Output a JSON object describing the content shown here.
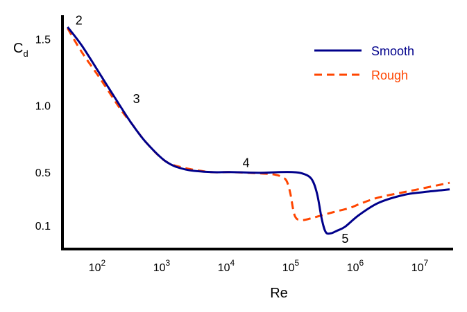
{
  "chart_data": {
    "type": "line",
    "title": "",
    "xlabel": "Re",
    "ylabel": "C",
    "ylabel_sub": "d",
    "xscale": "log",
    "xlim": [
      25,
      25000000
    ],
    "ylim": [
      0.0,
      1.72
    ],
    "x_ticks": [
      {
        "base": "10",
        "exp": "2",
        "value": 100
      },
      {
        "base": "10",
        "exp": "3",
        "value": 1000
      },
      {
        "base": "10",
        "exp": "4",
        "value": 10000
      },
      {
        "base": "10",
        "exp": "5",
        "value": 100000
      },
      {
        "base": "10",
        "exp": "6",
        "value": 1000000
      },
      {
        "base": "10",
        "exp": "7",
        "value": 10000000
      }
    ],
    "y_ticks": [
      {
        "label": "0.1",
        "value": 0.1
      },
      {
        "label": "0.5",
        "value": 0.5
      },
      {
        "label": "1.0",
        "value": 1.0
      },
      {
        "label": "1.5",
        "value": 1.5
      }
    ],
    "legend_position": "top-right",
    "series": [
      {
        "name": "Smooth",
        "color": "#00008b",
        "dash": "solid",
        "x": [
          30,
          50,
          100,
          200,
          300,
          500,
          1000,
          2000,
          5000,
          10000,
          30000,
          60000,
          90000,
          130000,
          180000,
          220000,
          260000,
          300000,
          360000,
          450000,
          600000,
          1000000,
          2000000,
          5000000,
          10000000,
          25000000
        ],
        "y": [
          1.59,
          1.45,
          1.22,
          0.99,
          0.86,
          0.72,
          0.58,
          0.52,
          0.5,
          0.5,
          0.495,
          0.5,
          0.5,
          0.49,
          0.45,
          0.34,
          0.15,
          0.05,
          0.04,
          0.06,
          0.09,
          0.18,
          0.27,
          0.33,
          0.35,
          0.37
        ]
      },
      {
        "name": "Rough",
        "color": "#ff4500",
        "dash": "dashed",
        "x": [
          30,
          50,
          100,
          200,
          300,
          500,
          1000,
          2000,
          5000,
          10000,
          30000,
          50000,
          65000,
          75000,
          85000,
          100000,
          130000,
          200000,
          400000,
          700000,
          1000000,
          2000000,
          5000000,
          10000000,
          25000000
        ],
        "y": [
          1.58,
          1.4,
          1.19,
          0.97,
          0.86,
          0.72,
          0.58,
          0.53,
          0.5,
          0.5,
          0.49,
          0.48,
          0.46,
          0.43,
          0.34,
          0.17,
          0.14,
          0.16,
          0.2,
          0.23,
          0.26,
          0.31,
          0.35,
          0.38,
          0.42
        ]
      }
    ],
    "annotations": [
      {
        "text": "2",
        "x": 45,
        "y": 1.64
      },
      {
        "text": "3",
        "x": 350,
        "y": 1.05
      },
      {
        "text": "4",
        "x": 17500,
        "y": 0.57
      },
      {
        "text": "5",
        "x": 600000,
        "y": 0.0
      }
    ]
  }
}
